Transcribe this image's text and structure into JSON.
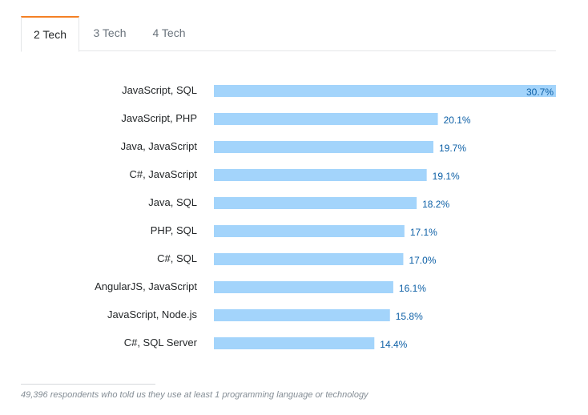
{
  "tabs": [
    {
      "label": "2 Tech",
      "active": true
    },
    {
      "label": "3 Tech",
      "active": false
    },
    {
      "label": "4 Tech",
      "active": false
    }
  ],
  "colors": {
    "bar": "#a3d4fb",
    "value_text": "#0c5fa6",
    "active_tab_accent": "#f48024"
  },
  "chart_data": {
    "type": "bar",
    "orientation": "horizontal",
    "title": "",
    "xlabel": "",
    "ylabel": "",
    "unit": "%",
    "xlim": [
      0,
      30.7
    ],
    "categories": [
      "JavaScript, SQL",
      "JavaScript, PHP",
      "Java, JavaScript",
      "C#, JavaScript",
      "Java, SQL",
      "PHP, SQL",
      "C#, SQL",
      "AngularJS, JavaScript",
      "JavaScript, Node.js",
      "C#, SQL Server"
    ],
    "values": [
      30.7,
      20.1,
      19.7,
      19.1,
      18.2,
      17.1,
      17.0,
      16.1,
      15.8,
      14.4
    ],
    "value_labels": [
      "30.7%",
      "20.1%",
      "19.7%",
      "19.1%",
      "18.2%",
      "17.1%",
      "17.0%",
      "16.1%",
      "15.8%",
      "14.4%"
    ]
  },
  "footnote": "49,396 respondents who told us they use at least 1 programming language or technology"
}
